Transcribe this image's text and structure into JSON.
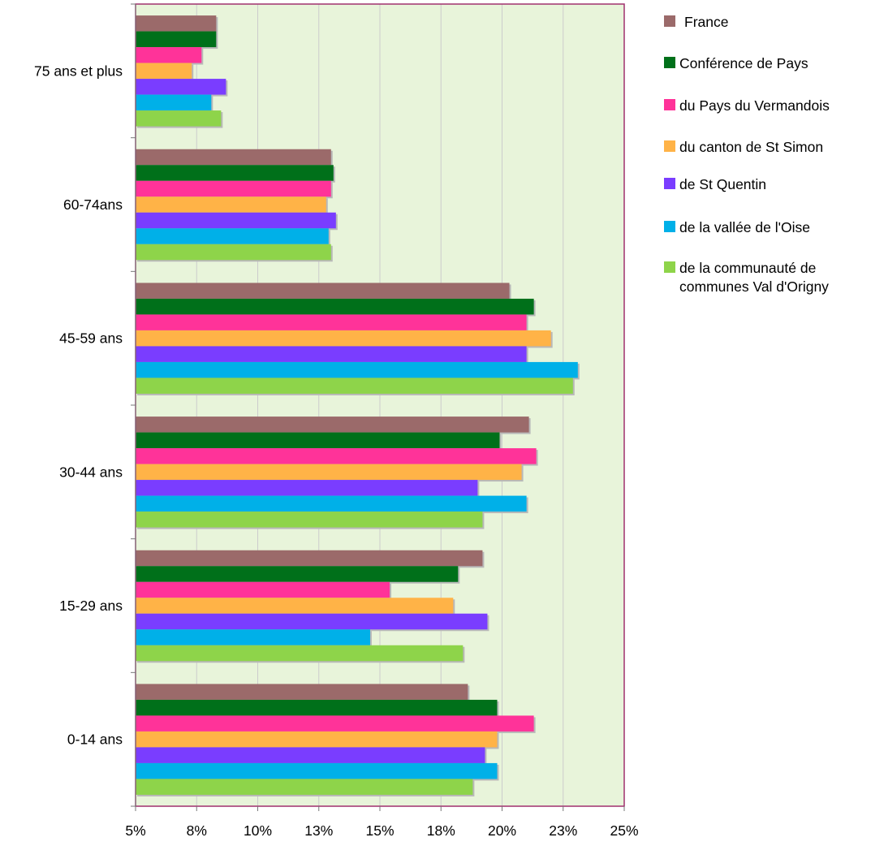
{
  "chart_data": {
    "type": "bar",
    "orientation": "horizontal",
    "title": "",
    "xlabel": "",
    "ylabel": "",
    "categories": [
      "0-14 ans",
      "15-29 ans",
      "30-44 ans",
      "45-59 ans",
      "60-74ans",
      "75 ans et plus"
    ],
    "x_ticks": [
      "5%",
      "8%",
      "10%",
      "13%",
      "15%",
      "18%",
      "20%",
      "23%",
      "25%"
    ],
    "xlim": [
      5,
      25
    ],
    "grid": true,
    "legend_position": "right",
    "plot_background": "#e8f4da",
    "plot_border_color": "#a0306e",
    "series": [
      {
        "name": "France",
        "color": "#9b6a6a",
        "values": [
          18.6,
          19.2,
          21.1,
          20.3,
          13.0,
          8.3
        ]
      },
      {
        "name": "Conférence de Pays",
        "color": "#00701a",
        "values": [
          19.8,
          18.2,
          19.9,
          21.3,
          13.1,
          8.3
        ]
      },
      {
        "name": "du Pays du Vermandois",
        "color": "#ff3399",
        "values": [
          21.3,
          15.4,
          21.4,
          21.0,
          13.0,
          7.7
        ]
      },
      {
        "name": "du canton de St Simon",
        "color": "#ffb347",
        "values": [
          19.8,
          18.0,
          20.8,
          22.0,
          12.8,
          7.3
        ]
      },
      {
        "name": "de St Quentin",
        "color": "#7a3dff",
        "values": [
          19.3,
          19.4,
          19.0,
          21.0,
          13.2,
          8.7
        ]
      },
      {
        "name": "de la vallée de l'Oise",
        "color": "#00b0e8",
        "values": [
          19.8,
          14.6,
          21.0,
          23.1,
          12.9,
          8.1
        ]
      },
      {
        "name": "de la communauté de communes Val d'Origny",
        "color": "#8ed44a",
        "values": [
          18.8,
          18.4,
          19.2,
          22.9,
          13.0,
          8.5
        ]
      }
    ]
  },
  "legend": {
    "entries": [
      {
        "lines": [
          "France"
        ]
      },
      {
        "lines": [
          "Conférence de Pays"
        ]
      },
      {
        "lines": [
          "du Pays du Vermandois"
        ]
      },
      {
        "lines": [
          "du canton de St Simon"
        ]
      },
      {
        "lines": [
          "de St Quentin"
        ]
      },
      {
        "lines": [
          "de la vallée de l'Oise"
        ]
      },
      {
        "lines": [
          "de la communauté de",
          "communes Val d'Origny"
        ]
      }
    ]
  }
}
